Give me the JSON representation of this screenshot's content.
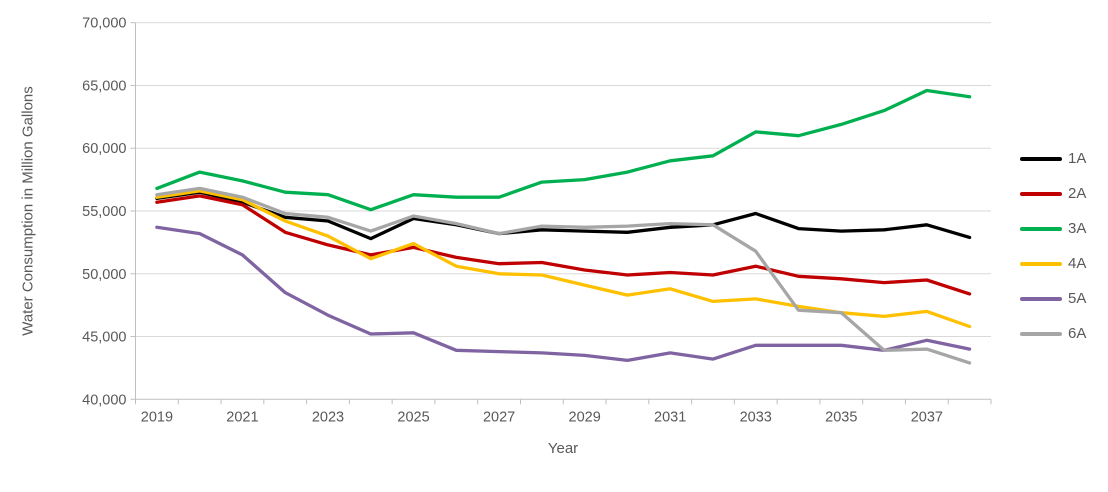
{
  "chart_data": {
    "type": "line",
    "title": "",
    "xlabel": "Year",
    "ylabel": "Water Consumption in Million Gallons",
    "ylim": [
      40000,
      70000
    ],
    "ytick_step": 5000,
    "ytick_labels": [
      "40,000",
      "45,000",
      "50,000",
      "55,000",
      "60,000",
      "65,000",
      "70,000"
    ],
    "xtick_labels": [
      "2019",
      "2021",
      "2023",
      "2025",
      "2027",
      "2029",
      "2031",
      "2033",
      "2035",
      "2037"
    ],
    "x": [
      2019,
      2020,
      2021,
      2022,
      2023,
      2024,
      2025,
      2026,
      2027,
      2028,
      2029,
      2030,
      2031,
      2032,
      2033,
      2034,
      2035,
      2036,
      2037,
      2038
    ],
    "grid": "horizontal",
    "legend_position": "right",
    "series": [
      {
        "name": "1A",
        "color": "#000000",
        "values": [
          56000,
          56500,
          55700,
          54500,
          54200,
          52800,
          54400,
          53900,
          53200,
          53500,
          53400,
          53300,
          53700,
          53900,
          54800,
          53600,
          53400,
          53500,
          53900,
          52900
        ]
      },
      {
        "name": "2A",
        "color": "#C00000",
        "values": [
          55700,
          56200,
          55500,
          53300,
          52300,
          51500,
          52100,
          51300,
          50800,
          50900,
          50300,
          49900,
          50100,
          49900,
          50600,
          49800,
          49600,
          49300,
          49500,
          48400
        ]
      },
      {
        "name": "3A",
        "color": "#00B050",
        "values": [
          56800,
          58100,
          57400,
          56500,
          56300,
          55100,
          56300,
          56100,
          56100,
          57300,
          57500,
          58100,
          59000,
          59400,
          61300,
          61000,
          61900,
          63000,
          64600,
          64100
        ]
      },
      {
        "name": "4A",
        "color": "#FFC000",
        "values": [
          56100,
          56600,
          55900,
          54200,
          53000,
          51200,
          52400,
          50600,
          50000,
          49900,
          49100,
          48300,
          48800,
          47800,
          48000,
          47400,
          46900,
          46600,
          47000,
          45800
        ]
      },
      {
        "name": "5A",
        "color": "#8064A2",
        "values": [
          53700,
          53200,
          51500,
          48500,
          46700,
          45200,
          45300,
          43900,
          43800,
          43700,
          43500,
          43100,
          43700,
          43200,
          44300,
          44300,
          44300,
          43900,
          44700,
          44000
        ]
      },
      {
        "name": "6A",
        "color": "#A6A6A6",
        "values": [
          56300,
          56800,
          56100,
          54800,
          54500,
          53400,
          54600,
          54000,
          53200,
          53800,
          53700,
          53800,
          54000,
          53900,
          51800,
          47100,
          46900,
          43900,
          44000,
          42900
        ]
      }
    ],
    "colors": {
      "axis_line": "#BFBFBF",
      "gridline": "#D9D9D9",
      "tick_text": "#595959",
      "background": "#FFFFFF"
    }
  }
}
